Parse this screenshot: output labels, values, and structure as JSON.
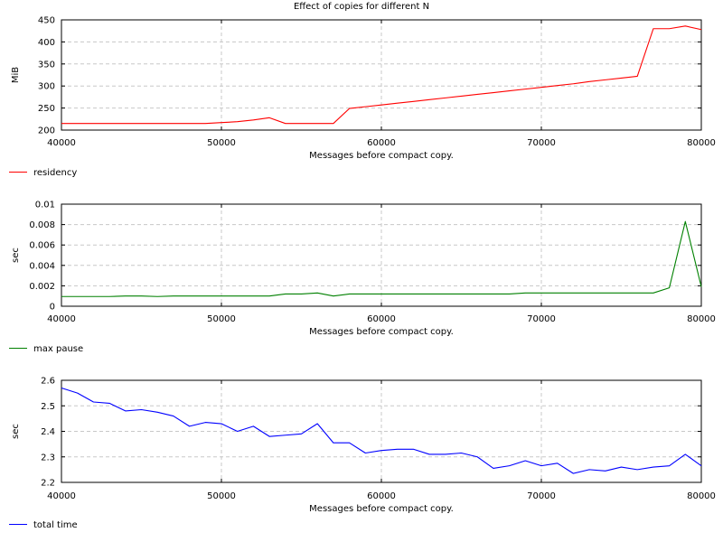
{
  "chart_data": {
    "title": "Effect of copies for different N",
    "panels": [
      {
        "type": "line",
        "xlabel": "Messages before compact copy.",
        "ylabel": "MiB",
        "xlim": [
          40000,
          80000
        ],
        "ylim": [
          200,
          450
        ],
        "xticks": [
          40000,
          50000,
          60000,
          70000,
          80000
        ],
        "yticks": [
          200,
          250,
          300,
          350,
          400,
          450
        ],
        "grid": true,
        "legend_position": "bottom-left",
        "series": [
          {
            "name": "residency",
            "color": "#ff0000",
            "x": [
              40000,
              41000,
              42000,
              43000,
              44000,
              45000,
              46000,
              47000,
              48000,
              49000,
              50000,
              51000,
              52000,
              53000,
              54000,
              55000,
              56000,
              57000,
              58000,
              59000,
              60000,
              61000,
              62000,
              63000,
              64000,
              65000,
              66000,
              67000,
              68000,
              69000,
              70000,
              71000,
              72000,
              73000,
              74000,
              75000,
              76000,
              77000,
              78000,
              79000,
              80000
            ],
            "y": [
              215,
              215,
              215,
              215,
              215,
              215,
              215,
              215,
              215,
              215,
              217,
              219,
              223,
              228,
              215,
              215,
              215,
              215,
              249,
              253,
              257,
              261,
              265,
              269,
              273,
              277,
              281,
              285,
              289,
              293,
              297,
              301,
              305,
              310,
              314,
              318,
              322,
              430,
              430,
              436,
              428
            ]
          }
        ]
      },
      {
        "type": "line",
        "xlabel": "Messages before compact copy.",
        "ylabel": "sec",
        "xlim": [
          40000,
          80000
        ],
        "ylim": [
          0,
          0.01
        ],
        "xticks": [
          40000,
          50000,
          60000,
          70000,
          80000
        ],
        "yticks": [
          "0",
          "0.002",
          "0.004",
          "0.006",
          "0.008",
          "0.01"
        ],
        "grid": true,
        "legend_position": "bottom-left",
        "series": [
          {
            "name": "max pause",
            "color": "#008000",
            "x": [
              40000,
              41000,
              42000,
              43000,
              44000,
              45000,
              46000,
              47000,
              48000,
              49000,
              50000,
              51000,
              52000,
              53000,
              54000,
              55000,
              56000,
              57000,
              58000,
              59000,
              60000,
              61000,
              62000,
              63000,
              64000,
              65000,
              66000,
              67000,
              68000,
              69000,
              70000,
              71000,
              72000,
              73000,
              74000,
              75000,
              76000,
              77000,
              78000,
              79000,
              80000
            ],
            "y": [
              0.00095,
              0.00095,
              0.00095,
              0.00095,
              0.001,
              0.001,
              0.00095,
              0.001,
              0.001,
              0.001,
              0.001,
              0.001,
              0.001,
              0.001,
              0.0012,
              0.0012,
              0.0013,
              0.001,
              0.0012,
              0.0012,
              0.0012,
              0.0012,
              0.0012,
              0.0012,
              0.0012,
              0.0012,
              0.0012,
              0.0012,
              0.0012,
              0.0013,
              0.0013,
              0.0013,
              0.0013,
              0.0013,
              0.0013,
              0.0013,
              0.0013,
              0.0013,
              0.0018,
              0.0083,
              0.0019
            ]
          }
        ]
      },
      {
        "type": "line",
        "xlabel": "Messages before compact copy.",
        "ylabel": "sec",
        "xlim": [
          40000,
          80000
        ],
        "ylim": [
          2.2,
          2.6
        ],
        "xticks": [
          40000,
          50000,
          60000,
          70000,
          80000
        ],
        "yticks": [
          "2.2",
          "2.3",
          "2.4",
          "2.5",
          "2.6"
        ],
        "grid": true,
        "legend_position": "bottom-left",
        "series": [
          {
            "name": "total time",
            "color": "#0000ff",
            "x": [
              40000,
              41000,
              42000,
              43000,
              44000,
              45000,
              46000,
              47000,
              48000,
              49000,
              50000,
              51000,
              52000,
              53000,
              54000,
              55000,
              56000,
              57000,
              58000,
              59000,
              60000,
              61000,
              62000,
              63000,
              64000,
              65000,
              66000,
              67000,
              68000,
              69000,
              70000,
              71000,
              72000,
              73000,
              74000,
              75000,
              76000,
              77000,
              78000,
              79000,
              80000
            ],
            "y": [
              2.57,
              2.55,
              2.515,
              2.51,
              2.48,
              2.485,
              2.475,
              2.46,
              2.42,
              2.435,
              2.43,
              2.4,
              2.42,
              2.38,
              2.385,
              2.39,
              2.43,
              2.355,
              2.355,
              2.315,
              2.325,
              2.33,
              2.33,
              2.31,
              2.31,
              2.315,
              2.3,
              2.255,
              2.265,
              2.285,
              2.265,
              2.275,
              2.235,
              2.25,
              2.245,
              2.26,
              2.25,
              2.26,
              2.265,
              2.31,
              2.265
            ]
          }
        ]
      }
    ]
  }
}
